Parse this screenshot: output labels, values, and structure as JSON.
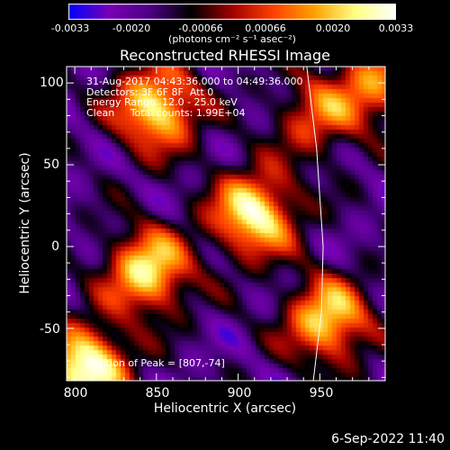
{
  "chart_data": {
    "type": "heatmap",
    "title": "Reconstructed RHESSI Image",
    "xlabel": "Heliocentric X (arcsec)",
    "ylabel": "Heliocentric Y (arcsec)",
    "xlim": [
      795,
      990
    ],
    "ylim": [
      -82,
      110
    ],
    "xticks": [
      "800",
      "850",
      "900",
      "950"
    ],
    "yticks": [
      "100",
      "50",
      "0",
      "-50"
    ],
    "colorbar": {
      "ticks": [
        "-0.0033",
        "-0.0020",
        "-0.00066",
        "0.00066",
        "0.0020",
        "0.0033"
      ],
      "label": "(photons cm⁻² s⁻¹ asec⁻²)",
      "range": [
        -0.0033,
        0.0033
      ],
      "colors": [
        "#0000ff",
        "#7a00b4",
        "#4b0082",
        "#000000",
        "#a00000",
        "#ff4000",
        "#ffa000",
        "#ffff80",
        "#ffffff"
      ]
    },
    "annotations": [
      "31-Aug-2017 04:43:36.000 to 04:49:36.000",
      "Detectors: 3F 6F 8F  Att 0",
      "Energy Range: 12.0 - 25.0 keV",
      "Clean     Total counts: 1.99E+04"
    ],
    "peak_label": "Position of Peak = [807,-74]",
    "peak": [
      807,
      -74
    ],
    "sources": [
      {
        "x": 910,
        "y": 20,
        "peak": 0.0029
      },
      {
        "x": 850,
        "y": 85,
        "peak": 0.0027
      },
      {
        "x": 845,
        "y": -15,
        "peak": 0.0026
      },
      {
        "x": 807,
        "y": -74,
        "peak": 0.0033
      },
      {
        "x": 955,
        "y": -45,
        "peak": 0.0024
      },
      {
        "x": 985,
        "y": 100,
        "peak": 0.0012
      },
      {
        "x": 948,
        "y": 80,
        "peak": 0.0008
      }
    ],
    "limb_curve": [
      [
        942,
        110
      ],
      [
        948,
        60
      ],
      [
        952,
        0
      ],
      [
        951,
        -40
      ],
      [
        946,
        -82
      ]
    ]
  },
  "date_stamp": "6-Sep-2022 11:40"
}
